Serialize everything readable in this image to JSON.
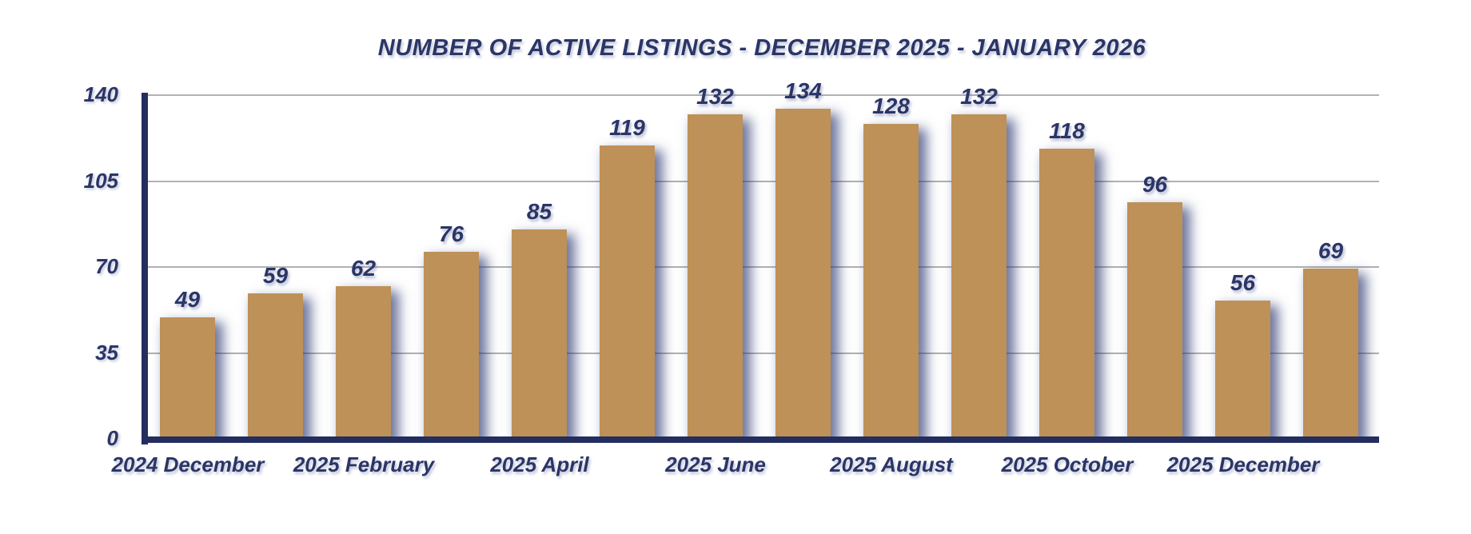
{
  "chart_data": {
    "type": "bar",
    "title": "NUMBER OF ACTIVE LISTINGS - DECEMBER 2025 - JANUARY 2026",
    "values": [
      49,
      59,
      62,
      76,
      85,
      119,
      132,
      134,
      128,
      132,
      118,
      96,
      56,
      69
    ],
    "x_tick_labels": [
      "2024 December",
      "2025 February",
      "2025 April",
      "2025 June",
      "2025 August",
      "2025 October",
      "2025 December"
    ],
    "x_label_every_n_bars": 2,
    "y_ticks": [
      0,
      35,
      70,
      105,
      140
    ],
    "ylim": [
      0,
      140
    ],
    "grid": "horizontal",
    "legend": "none",
    "xlabel": "",
    "ylabel": "",
    "colors": {
      "bar": "#bd9157",
      "text": "#2b3566",
      "axis": "#232e5f",
      "gridline": "#b1b1b1",
      "bar_shadow": "rgba(47,58,116,0.7)"
    }
  }
}
